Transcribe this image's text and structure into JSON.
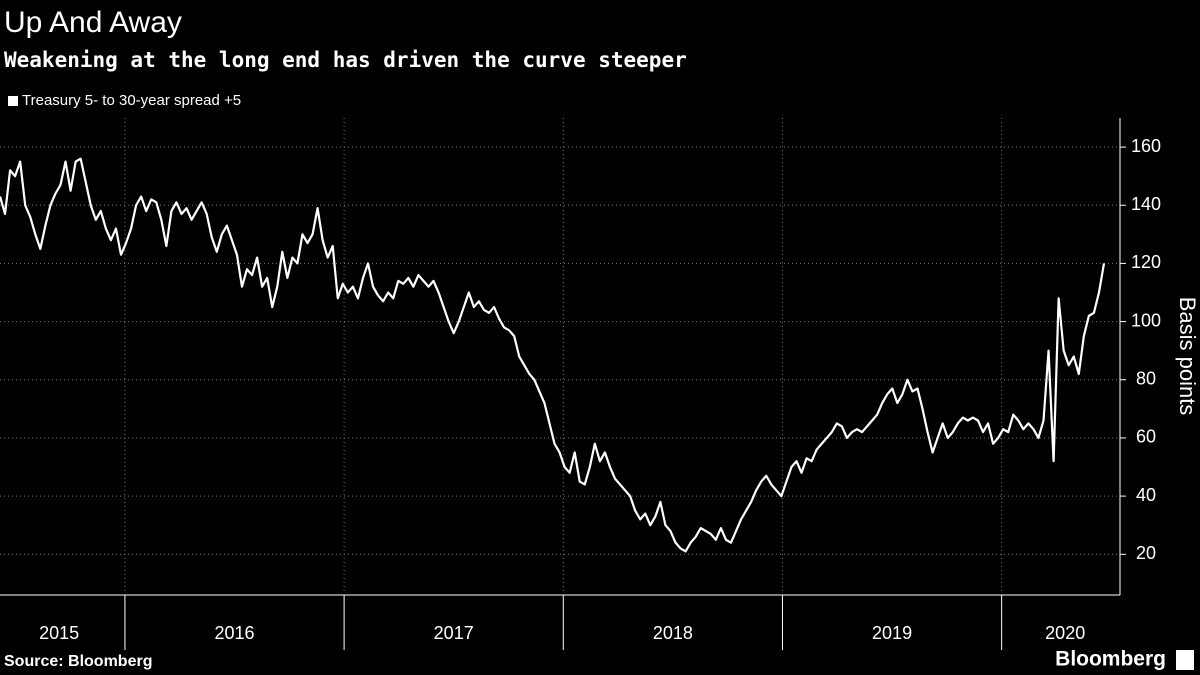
{
  "chart_data": {
    "type": "line",
    "title": "Up And Away",
    "subtitle": "Weakening at the long end has driven the curve steeper",
    "ylabel": "Basis points",
    "source": "Source: Bloomberg",
    "brand": "Bloomberg",
    "grid": true,
    "legend": "top-left",
    "xlim": [
      2015.43,
      2020.54
    ],
    "xticks": [
      {
        "value": 2015.7,
        "label": "2015"
      },
      {
        "value": 2016.5,
        "label": "2016"
      },
      {
        "value": 2017.5,
        "label": "2017"
      },
      {
        "value": 2018.5,
        "label": "2018"
      },
      {
        "value": 2019.5,
        "label": "2019"
      },
      {
        "value": 2020.29,
        "label": "2020"
      }
    ],
    "xgrid": [
      2016,
      2017,
      2018,
      2019,
      2020
    ],
    "ylim": [
      6,
      170
    ],
    "yticks": [
      20,
      40,
      60,
      80,
      100,
      120,
      140,
      160
    ],
    "x": [
      2015.43,
      2015.453,
      2015.476,
      2015.499,
      2015.522,
      2015.545,
      2015.568,
      2015.591,
      2015.614,
      2015.637,
      2015.66,
      2015.683,
      2015.706,
      2015.729,
      2015.752,
      2015.775,
      2015.798,
      2015.821,
      2015.844,
      2015.867,
      2015.89,
      2015.913,
      2015.936,
      2015.959,
      2015.982,
      2016.005,
      2016.028,
      2016.051,
      2016.074,
      2016.097,
      2016.12,
      2016.143,
      2016.166,
      2016.189,
      2016.212,
      2016.235,
      2016.258,
      2016.281,
      2016.304,
      2016.327,
      2016.35,
      2016.373,
      2016.396,
      2016.419,
      2016.442,
      2016.465,
      2016.488,
      2016.511,
      2016.534,
      2016.557,
      2016.58,
      2016.603,
      2016.626,
      2016.649,
      2016.672,
      2016.695,
      2016.718,
      2016.741,
      2016.764,
      2016.787,
      2016.81,
      2016.833,
      2016.856,
      2016.879,
      2016.902,
      2016.925,
      2016.948,
      2016.971,
      2016.994,
      2017.017,
      2017.04,
      2017.063,
      2017.086,
      2017.109,
      2017.132,
      2017.155,
      2017.178,
      2017.201,
      2017.224,
      2017.247,
      2017.27,
      2017.293,
      2017.316,
      2017.339,
      2017.362,
      2017.385,
      2017.408,
      2017.431,
      2017.454,
      2017.477,
      2017.5,
      2017.523,
      2017.546,
      2017.569,
      2017.592,
      2017.615,
      2017.638,
      2017.661,
      2017.684,
      2017.707,
      2017.73,
      2017.753,
      2017.776,
      2017.799,
      2017.822,
      2017.845,
      2017.868,
      2017.891,
      2017.914,
      2017.937,
      2017.96,
      2017.983,
      2018.006,
      2018.029,
      2018.052,
      2018.075,
      2018.098,
      2018.121,
      2018.144,
      2018.167,
      2018.19,
      2018.213,
      2018.236,
      2018.259,
      2018.282,
      2018.305,
      2018.328,
      2018.351,
      2018.374,
      2018.397,
      2018.42,
      2018.443,
      2018.466,
      2018.489,
      2018.512,
      2018.535,
      2018.558,
      2018.581,
      2018.604,
      2018.627,
      2018.65,
      2018.673,
      2018.696,
      2018.719,
      2018.742,
      2018.765,
      2018.788,
      2018.811,
      2018.834,
      2018.857,
      2018.88,
      2018.903,
      2018.926,
      2018.949,
      2018.972,
      2018.995,
      2019.018,
      2019.041,
      2019.064,
      2019.087,
      2019.11,
      2019.133,
      2019.156,
      2019.179,
      2019.202,
      2019.225,
      2019.248,
      2019.271,
      2019.294,
      2019.317,
      2019.34,
      2019.363,
      2019.386,
      2019.409,
      2019.432,
      2019.455,
      2019.478,
      2019.501,
      2019.524,
      2019.547,
      2019.57,
      2019.593,
      2019.616,
      2019.639,
      2019.662,
      2019.685,
      2019.708,
      2019.731,
      2019.754,
      2019.777,
      2019.8,
      2019.823,
      2019.846,
      2019.869,
      2019.892,
      2019.915,
      2019.938,
      2019.961,
      2019.984,
      2020.007,
      2020.03,
      2020.053,
      2020.076,
      2020.099,
      2020.122,
      2020.145,
      2020.168,
      2020.191,
      2020.214,
      2020.237,
      2020.26,
      2020.283,
      2020.306,
      2020.329,
      2020.352,
      2020.375,
      2020.398,
      2020.421,
      2020.444,
      2020.467
    ],
    "series": [
      {
        "name": "Treasury 5- to 30-year spread +5",
        "color": "#ffffff",
        "values": [
          143,
          137,
          152,
          150,
          155,
          140,
          136,
          130,
          125,
          133,
          140,
          144,
          147,
          155,
          145,
          155,
          156,
          148,
          140,
          135,
          138,
          132,
          128,
          132,
          123,
          127,
          132,
          140,
          143,
          138,
          142,
          141,
          135,
          126,
          138,
          141,
          137,
          139,
          135,
          138,
          141,
          137,
          129,
          124,
          130,
          133,
          128,
          123,
          112,
          118,
          116,
          122,
          112,
          115,
          105,
          112,
          124,
          115,
          122,
          120,
          130,
          127,
          130,
          139,
          128,
          122,
          126,
          108,
          113,
          110,
          112,
          108,
          115,
          120,
          112,
          109,
          107,
          110,
          108,
          114,
          113,
          115,
          112,
          116,
          114,
          112,
          114,
          110,
          105,
          100,
          96,
          100,
          105,
          110,
          105,
          107,
          104,
          103,
          105,
          101,
          98,
          97,
          95,
          88,
          85,
          82,
          80,
          76,
          72,
          65,
          58,
          55,
          50,
          48,
          55,
          45,
          44,
          50,
          58,
          52,
          55,
          50,
          46,
          44,
          42,
          40,
          35,
          32,
          34,
          30,
          33,
          38,
          30,
          28,
          24,
          22,
          21,
          24,
          26,
          29,
          28,
          27,
          25,
          29,
          25,
          24,
          28,
          32,
          35,
          38,
          42,
          45,
          47,
          44,
          42,
          40,
          45,
          50,
          52,
          48,
          53,
          52,
          56,
          58,
          60,
          62,
          65,
          64,
          60,
          62,
          63,
          62,
          64,
          66,
          68,
          72,
          75,
          77,
          72,
          75,
          80,
          76,
          77,
          70,
          62,
          55,
          60,
          65,
          60,
          62,
          65,
          67,
          66,
          67,
          66,
          62,
          65,
          58,
          60,
          63,
          62,
          68,
          66,
          63,
          65,
          63,
          60,
          66,
          90,
          52,
          108,
          90,
          85,
          88,
          82,
          95,
          102,
          103,
          110,
          120
        ]
      }
    ]
  }
}
